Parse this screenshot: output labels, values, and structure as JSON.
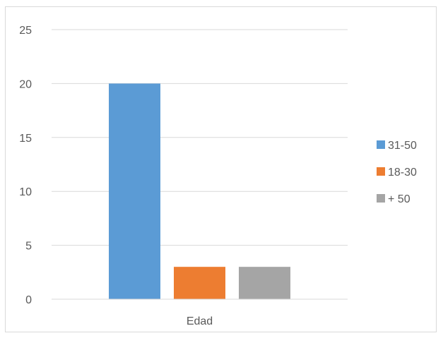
{
  "chart_data": {
    "type": "bar",
    "categories": [
      "Edad"
    ],
    "series": [
      {
        "name": "31-50",
        "values": [
          20
        ],
        "color": "#5b9bd5"
      },
      {
        "name": "18-30",
        "values": [
          3
        ],
        "color": "#ed7d31"
      },
      {
        "name": "+ 50",
        "values": [
          3
        ],
        "color": "#a5a5a5"
      }
    ],
    "ylim": [
      0,
      25
    ],
    "yticks": [
      "0",
      "5",
      "10",
      "15",
      "20",
      "25"
    ],
    "grid": true,
    "legend_position": "right"
  }
}
